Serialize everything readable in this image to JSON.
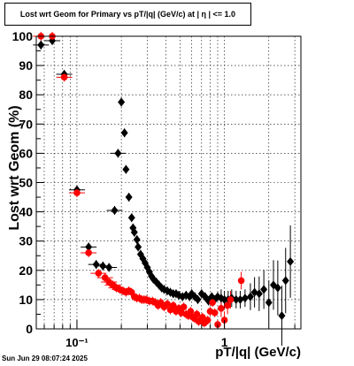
{
  "title": "Lost wrt Geom for Primary vs pT/|q| (GeV/c) at |  η  | <= 1.0",
  "timestamp": "Sun Jun 29 08:07:24 2025",
  "chart_data": {
    "type": "scatter",
    "xlabel": "pT/|q| (GeV/c)",
    "ylabel": "Lost wrt Geom (%)",
    "x_scale": "log",
    "xlim": [
      0.053,
      3.3
    ],
    "ylim": [
      0,
      100
    ],
    "x_tick_labels": [
      "10⁻¹",
      "1"
    ],
    "y_tick_labels": [
      "0",
      "10",
      "20",
      "30",
      "40",
      "50",
      "60",
      "70",
      "80",
      "90",
      "100"
    ],
    "grid": true,
    "series": [
      {
        "color": "#000000",
        "marker": "diamond",
        "points": [
          [
            0.057,
            97
          ],
          [
            0.068,
            98.5
          ],
          [
            0.082,
            87
          ],
          [
            0.1,
            47.5
          ],
          [
            0.12,
            28
          ],
          [
            0.135,
            22
          ],
          [
            0.15,
            21.5
          ],
          [
            0.165,
            21
          ],
          [
            0.18,
            40.5
          ],
          [
            0.19,
            60
          ],
          [
            0.2,
            77.5
          ],
          [
            0.21,
            67
          ],
          [
            0.215,
            54.5
          ],
          [
            0.225,
            45
          ],
          [
            0.235,
            38
          ],
          [
            0.24,
            34.5
          ],
          [
            0.245,
            33
          ],
          [
            0.255,
            30.5
          ],
          [
            0.26,
            28
          ],
          [
            0.27,
            25.5
          ],
          [
            0.28,
            24
          ],
          [
            0.29,
            22.5
          ],
          [
            0.3,
            21
          ],
          [
            0.31,
            19.5
          ],
          [
            0.32,
            18
          ],
          [
            0.33,
            17
          ],
          [
            0.345,
            16
          ],
          [
            0.36,
            15
          ],
          [
            0.375,
            14
          ],
          [
            0.39,
            13.5
          ],
          [
            0.41,
            13
          ],
          [
            0.43,
            12.5
          ],
          [
            0.45,
            12
          ],
          [
            0.47,
            12
          ],
          [
            0.49,
            11.5
          ],
          [
            0.52,
            11
          ],
          [
            0.55,
            11.5
          ],
          [
            0.58,
            11
          ],
          [
            0.6,
            12
          ],
          [
            0.63,
            11
          ],
          [
            0.66,
            10
          ],
          [
            0.7,
            12
          ],
          [
            0.74,
            11
          ],
          [
            0.78,
            9.5
          ],
          [
            0.82,
            11
          ],
          [
            0.86,
            10
          ],
          [
            0.9,
            11
          ],
          [
            0.95,
            10.5
          ],
          [
            1.0,
            10
          ],
          [
            1.06,
            10
          ],
          [
            1.12,
            10.5
          ],
          [
            1.2,
            10
          ],
          [
            1.28,
            10
          ],
          [
            1.38,
            10.5
          ],
          [
            1.5,
            11
          ],
          [
            1.6,
            12.5
          ],
          [
            1.72,
            12
          ],
          [
            1.85,
            13.5
          ],
          [
            2.0,
            9
          ],
          [
            2.15,
            15
          ],
          [
            2.3,
            14
          ],
          [
            2.45,
            4.5
          ],
          [
            2.6,
            16.5
          ],
          [
            2.8,
            23
          ]
        ]
      },
      {
        "color": "#ff0000",
        "marker": "circle",
        "points": [
          [
            0.057,
            100
          ],
          [
            0.068,
            100
          ],
          [
            0.082,
            86
          ],
          [
            0.1,
            46.5
          ],
          [
            0.12,
            26
          ],
          [
            0.14,
            19
          ],
          [
            0.155,
            17.5
          ],
          [
            0.165,
            16
          ],
          [
            0.175,
            15
          ],
          [
            0.185,
            14
          ],
          [
            0.195,
            13.5
          ],
          [
            0.205,
            13
          ],
          [
            0.215,
            12.5
          ],
          [
            0.225,
            13
          ],
          [
            0.235,
            12.5
          ],
          [
            0.245,
            11
          ],
          [
            0.255,
            10.5
          ],
          [
            0.265,
            10.5
          ],
          [
            0.275,
            10
          ],
          [
            0.285,
            10
          ],
          [
            0.295,
            10
          ],
          [
            0.31,
            9.5
          ],
          [
            0.325,
            9.5
          ],
          [
            0.34,
            9
          ],
          [
            0.355,
            8
          ],
          [
            0.37,
            9
          ],
          [
            0.39,
            7.5
          ],
          [
            0.41,
            8.5
          ],
          [
            0.43,
            6.5
          ],
          [
            0.45,
            8
          ],
          [
            0.47,
            6
          ],
          [
            0.49,
            7
          ],
          [
            0.51,
            5.5
          ],
          [
            0.53,
            7.5
          ],
          [
            0.55,
            5
          ],
          [
            0.57,
            4.5
          ],
          [
            0.59,
            6
          ],
          [
            0.61,
            4
          ],
          [
            0.63,
            3.5
          ],
          [
            0.65,
            5
          ],
          [
            0.67,
            2.5
          ],
          [
            0.69,
            3
          ],
          [
            0.71,
            4
          ],
          [
            0.73,
            2
          ],
          [
            0.75,
            2.5
          ],
          [
            0.77,
            3
          ],
          [
            0.8,
            6
          ],
          [
            0.83,
            9
          ],
          [
            0.86,
            5.5
          ],
          [
            0.9,
            1.5
          ],
          [
            0.95,
            7
          ],
          [
            1.0,
            3
          ],
          [
            1.05,
            8
          ],
          [
            1.1,
            10
          ],
          [
            1.3,
            16.5
          ]
        ]
      }
    ]
  }
}
